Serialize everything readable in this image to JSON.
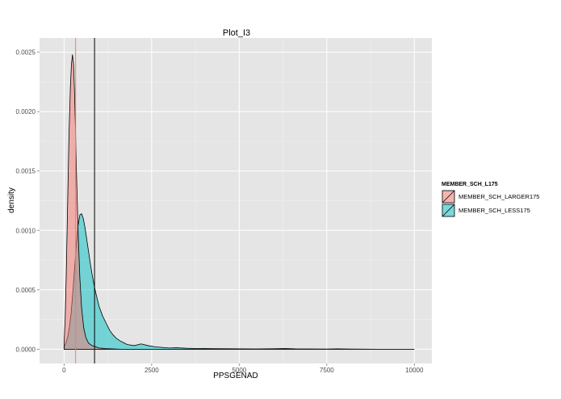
{
  "chart_data": {
    "type": "area",
    "title": "Plot_I3",
    "xlabel": "PPSGENAD",
    "ylabel": "density",
    "xlim": [
      -700,
      10500
    ],
    "ylim": [
      -0.00012,
      0.00262
    ],
    "x_ticks": [
      0,
      2500,
      5000,
      7500,
      10000
    ],
    "x_tick_labels": [
      "0",
      "2500",
      "5000",
      "7500",
      "10000"
    ],
    "y_ticks": [
      0,
      0.0005,
      0.001,
      0.0015,
      0.002,
      0.0025
    ],
    "y_tick_labels": [
      "0.0000",
      "0.0005",
      "0.0010",
      "0.0015",
      "0.0020",
      "0.0025"
    ],
    "grid": true,
    "legend": {
      "title": "MEMBER_SCH_L175",
      "position": "right"
    },
    "series": [
      {
        "name": "MEMBER_SCH_LARGER175",
        "fill": "#f8766d",
        "x": [
          0,
          30,
          60,
          100,
          140,
          180,
          210,
          240,
          270,
          300,
          330,
          360,
          400,
          450,
          500,
          560,
          620,
          700,
          800,
          900,
          1000,
          1200,
          1400,
          1600,
          10000
        ],
        "y": [
          5e-05,
          0.00025,
          0.0006,
          0.0012,
          0.0018,
          0.0022,
          0.0024,
          0.00248,
          0.0024,
          0.00215,
          0.0018,
          0.00142,
          0.001,
          0.0006,
          0.00035,
          0.00018,
          0.0001,
          5e-05,
          3e-05,
          2e-05,
          1e-05,
          5e-06,
          2e-06,
          0,
          0
        ]
      },
      {
        "name": "MEMBER_SCH_LESS175",
        "fill": "#00bfc4",
        "x": [
          0,
          50,
          100,
          150,
          200,
          250,
          300,
          350,
          400,
          450,
          500,
          550,
          600,
          650,
          700,
          750,
          800,
          850,
          900,
          950,
          1000,
          1100,
          1200,
          1300,
          1400,
          1500,
          1600,
          1700,
          1800,
          2000,
          2200,
          2400,
          2600,
          2800,
          3000,
          3200,
          3500,
          3800,
          4200,
          4600,
          5000,
          5500,
          6000,
          6300,
          6600,
          7000,
          7500,
          7800,
          8200,
          9000,
          10000
        ],
        "y": [
          2e-05,
          5e-05,
          0.0001,
          0.00018,
          0.0003,
          0.00048,
          0.00068,
          0.00088,
          0.00104,
          0.00113,
          0.00114,
          0.0011,
          0.00102,
          0.00092,
          0.00082,
          0.00072,
          0.00063,
          0.00055,
          0.00048,
          0.00042,
          0.00036,
          0.00028,
          0.00022,
          0.00016,
          0.00012,
          9e-05,
          7e-05,
          5.5e-05,
          4e-05,
          3e-05,
          4.5e-05,
          3e-05,
          2e-05,
          1.5e-05,
          1e-05,
          1.2e-05,
          8e-06,
          6e-06,
          5e-06,
          4e-06,
          3e-06,
          2e-06,
          4e-06,
          6e-06,
          3e-06,
          2e-06,
          1e-06,
          3e-06,
          1e-06,
          0,
          0
        ]
      }
    ],
    "vlines": [
      {
        "x": 330,
        "color": "#f8766d"
      },
      {
        "x": 870,
        "color": "#000000"
      }
    ]
  }
}
